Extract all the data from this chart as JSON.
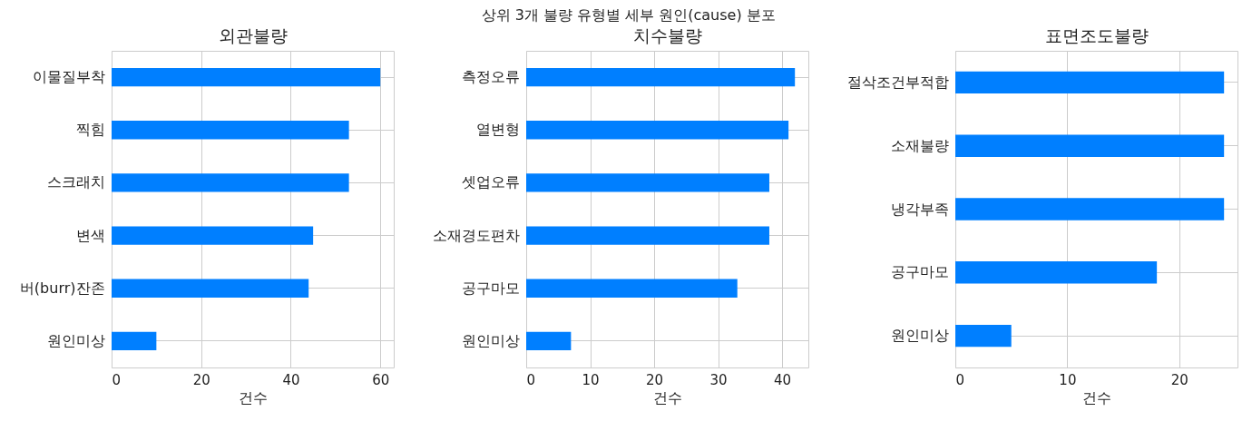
{
  "chart_data": [
    {
      "type": "bar",
      "orientation": "horizontal",
      "title": "외관불량",
      "xlabel": "건수",
      "annotations": [
        "상위 3개 불량 유형별 세부 원인(cause) 분포"
      ],
      "categories": [
        "이물질부착",
        "찍힘",
        "스크래치",
        "변색",
        "버(burr)잔존",
        "원인미상"
      ],
      "values": [
        60,
        53,
        53,
        45,
        44,
        10
      ],
      "color": "#007fff",
      "xlim": [
        0,
        63
      ],
      "xticks": [
        0,
        20,
        40,
        60
      ],
      "grid": true
    },
    {
      "type": "bar",
      "orientation": "horizontal",
      "title": "치수불량",
      "xlabel": "건수",
      "categories": [
        "측정오류",
        "열변형",
        "셋업오류",
        "소재경도편차",
        "공구마모",
        "원인미상"
      ],
      "values": [
        42,
        41,
        38,
        38,
        33,
        7
      ],
      "color": "#007fff",
      "xlim": [
        0,
        44.1
      ],
      "xticks": [
        0,
        10,
        20,
        30,
        40
      ],
      "grid": true
    },
    {
      "type": "bar",
      "orientation": "horizontal",
      "title": "표면조도불량",
      "xlabel": "건수",
      "categories": [
        "절삭조건부적합",
        "소재불량",
        "냉각부족",
        "공구마모",
        "원인미상"
      ],
      "values": [
        24,
        24,
        24,
        18,
        5
      ],
      "color": "#007fff",
      "xlim": [
        0,
        25.2
      ],
      "xticks": [
        0,
        10,
        20
      ],
      "grid": true
    }
  ]
}
